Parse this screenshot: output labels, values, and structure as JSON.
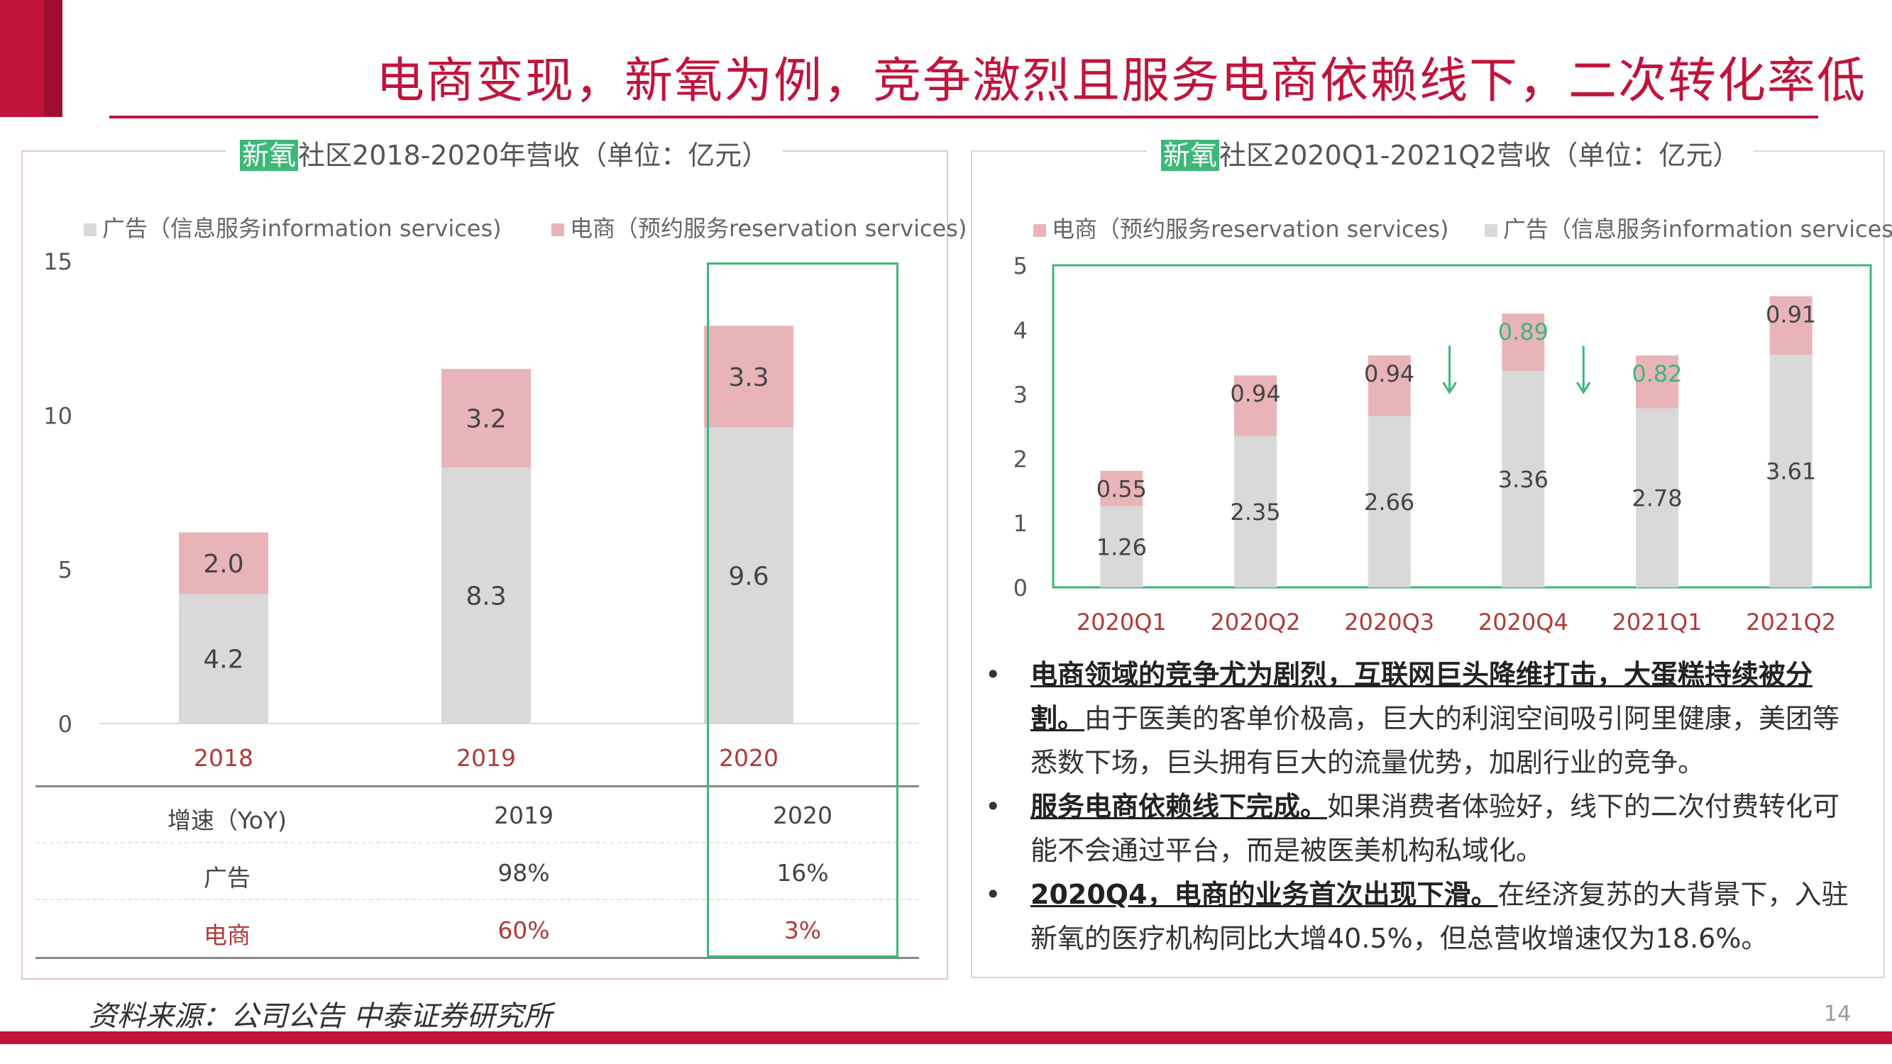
{
  "title": "电商变现，新氧为例，竞争激烈且服务电商依赖线下，二次转化率低",
  "left_panel": {
    "title_highlight": "新氧",
    "title_rest": "社区2018-2020年营收（单位：亿元）",
    "legend_ad": "广告（信息服务information services)",
    "legend_ec": "电商（预约服务reservation services)",
    "yoy_table": {
      "header": [
        "增速（YoY)",
        "2019",
        "2020"
      ],
      "rows": [
        {
          "label": "广告",
          "v2019": "98%",
          "v2020": "16%"
        },
        {
          "label": "电商",
          "v2019": "60%",
          "v2020": "3%"
        }
      ]
    }
  },
  "right_panel": {
    "title_highlight": "新氧",
    "title_rest": "社区2020Q1-2021Q2营收（单位：亿元）",
    "legend_ec": "电商（预约服务reservation services)",
    "legend_ad": "广告（信息服务information services)",
    "bullets": [
      {
        "bold": "电商领域的竞争尤为剧烈，互联网巨头降维打击，大蛋糕持续被分割。",
        "text": "由于医美的客单价极高，巨大的利润空间吸引阿里健康，美团等悉数下场，巨头拥有巨大的流量优势，加剧行业的竞争。"
      },
      {
        "bold": "服务电商依赖线下完成。",
        "text": "如果消费者体验好，线下的二次付费转化可能不会通过平台，而是被医美机构私域化。"
      },
      {
        "bold": "2020Q4，电商的业务首次出现下滑。",
        "text": "在经济复苏的大背景下，入驻新氧的医疗机构同比大增40.5%，但总营收增速仅为18.6%。"
      }
    ]
  },
  "chart_data": [
    {
      "type": "bar",
      "stacked": true,
      "categories": [
        "2018",
        "2019",
        "2020"
      ],
      "series": [
        {
          "name": "广告（信息服务information services)",
          "values": [
            4.2,
            8.3,
            9.6
          ],
          "color": "#d9d9d9"
        },
        {
          "name": "电商（预约服务reservation services)",
          "values": [
            2.0,
            3.2,
            3.3
          ],
          "color": "#e8b4b8"
        }
      ],
      "value_labels": [
        [
          "4.2",
          "8.3",
          "9.6"
        ],
        [
          "2.0",
          "3.2",
          "3.3"
        ]
      ],
      "yticks": [
        "0",
        "5",
        "10",
        "15"
      ],
      "ylim": [
        0,
        15
      ],
      "highlight_category": "2020",
      "highlight_color": "#3cb878",
      "legend_position": "top",
      "grid": false
    },
    {
      "type": "bar",
      "stacked": true,
      "categories": [
        "2020Q1",
        "2020Q2",
        "2020Q3",
        "2020Q4",
        "2021Q1",
        "2021Q2"
      ],
      "series": [
        {
          "name": "广告（信息服务information services)",
          "values": [
            1.26,
            2.35,
            2.66,
            3.36,
            2.78,
            3.61
          ],
          "color": "#d9d9d9"
        },
        {
          "name": "电商（预约服务reservation services)",
          "values": [
            0.55,
            0.94,
            0.94,
            0.89,
            0.82,
            0.91
          ],
          "color": "#e8b4b8"
        }
      ],
      "value_labels": [
        [
          "1.26",
          "2.35",
          "2.66",
          "3.36",
          "2.78",
          "3.61"
        ],
        [
          "0.55",
          "0.94",
          "0.94",
          "0.89",
          "0.82",
          "0.91"
        ]
      ],
      "green_labels": [
        "2020Q4",
        "2021Q1"
      ],
      "down_arrows": [
        "2020Q4",
        "2021Q1"
      ],
      "yticks": [
        "0",
        "1",
        "2",
        "3",
        "4",
        "5"
      ],
      "ylim": [
        0,
        5
      ],
      "highlight_color": "#3cb878",
      "legend_position": "top",
      "grid": false
    }
  ],
  "source": "资料来源：公司公告 中泰证券研究所",
  "page_number": "14"
}
